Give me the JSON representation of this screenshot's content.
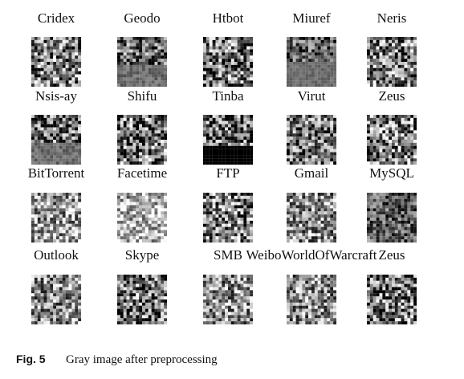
{
  "figure": {
    "labels": [
      "Cridex",
      "Geodo",
      "Htbot",
      "Miuref",
      "Neris",
      "Nsis-ay",
      "Shifu",
      "Tinba",
      "Virut",
      "Zeus",
      "BitTorrent",
      "Facetime",
      "FTP",
      "Gmail",
      "MySQL",
      "Outlook",
      "Skype",
      "SMB",
      "WeiboWorldOfWarcraft",
      "Zeus"
    ]
  },
  "caption": {
    "label": "Fig. 5",
    "text": "Gray image after preprocessing"
  }
}
